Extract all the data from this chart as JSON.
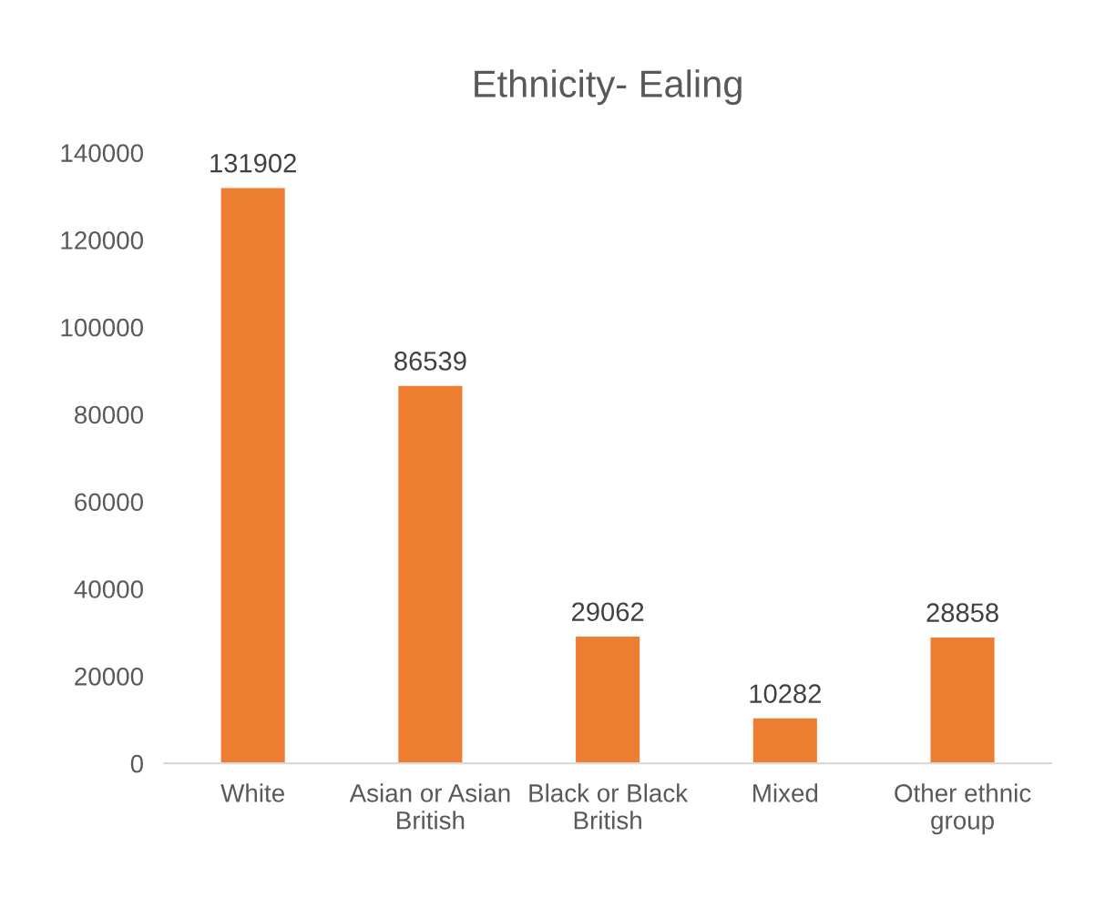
{
  "chart_data": {
    "type": "bar",
    "title": "Ethnicity- Ealing",
    "categories": [
      "White",
      "Asian or Asian British",
      "Black or Black British",
      "Mixed",
      "Other ethnic group"
    ],
    "values": [
      131902,
      86539,
      29062,
      10282,
      28858
    ],
    "color": "#ed7d31",
    "ylim": [
      0,
      140000
    ],
    "yticks": [
      0,
      20000,
      40000,
      60000,
      80000,
      100000,
      120000,
      140000
    ],
    "data_labels": true,
    "grid": false
  }
}
